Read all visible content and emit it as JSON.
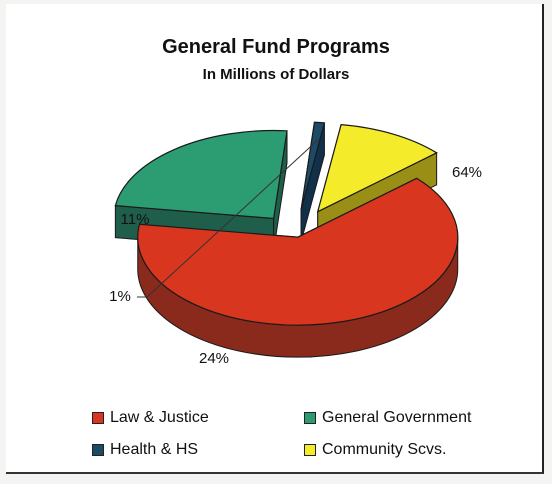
{
  "chart_data": {
    "type": "pie",
    "title": "General Fund Programs",
    "subtitle": "In Millions of Dollars",
    "slices": [
      {
        "label": "Law & Justice",
        "percent": 64,
        "percent_label": "64%",
        "color": "#d9361f",
        "side_color": "#8a2a1c"
      },
      {
        "label": "General Government",
        "percent": 24,
        "percent_label": "24%",
        "color": "#2c9c72",
        "side_color": "#1f5e4a"
      },
      {
        "label": "Health & HS",
        "percent": 1,
        "percent_label": "1%",
        "color": "#1d4a66",
        "side_color": "#12304a"
      },
      {
        "label": "Community Scvs.",
        "percent": 11,
        "percent_label": "11%",
        "color": "#f4ec2a",
        "side_color": "#9a8f16"
      }
    ],
    "legend_position": "bottom",
    "style": "3d-exploded"
  }
}
